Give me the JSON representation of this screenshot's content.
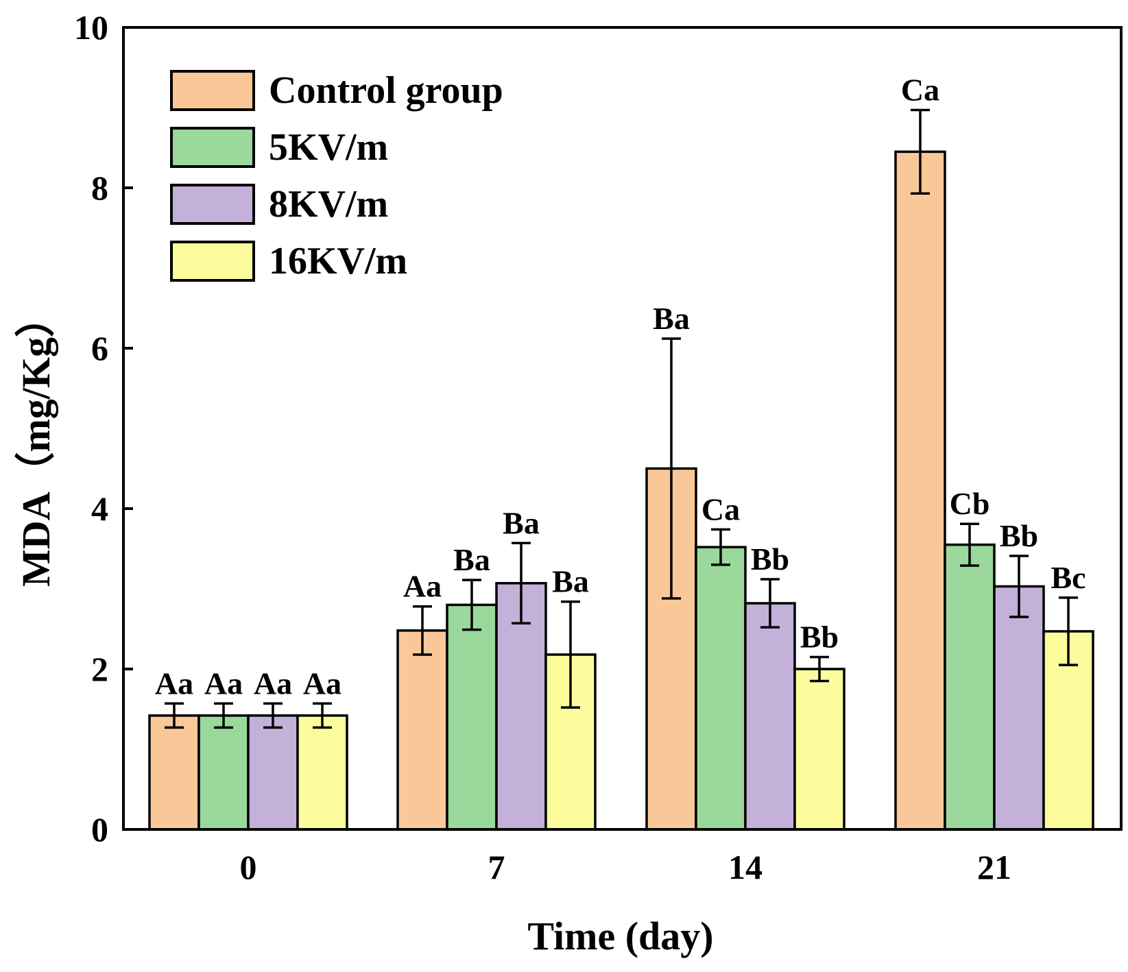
{
  "chart_data": {
    "type": "bar",
    "title": "",
    "xlabel": "Time (day)",
    "ylabel": "MDA（mg/Kg）",
    "categories": [
      "0",
      "7",
      "14",
      "21"
    ],
    "ylim": [
      0,
      10
    ],
    "yticks": [
      "0",
      "2",
      "4",
      "6",
      "8",
      "10"
    ],
    "grid": false,
    "legend_position": "top-left",
    "series": [
      {
        "name": "Control group",
        "color": "#FAC898",
        "values": [
          1.42,
          2.48,
          4.5,
          8.45
        ],
        "errors": [
          0.15,
          0.3,
          1.62,
          0.52
        ],
        "labels": [
          "Aa",
          "Aa",
          "Ba",
          "Ca"
        ]
      },
      {
        "name": "5KV/m",
        "color": "#9AD89B",
        "values": [
          1.42,
          2.8,
          3.52,
          3.55
        ],
        "errors": [
          0.15,
          0.31,
          0.22,
          0.26
        ],
        "labels": [
          "Aa",
          "Ba",
          "Ca",
          "Cb"
        ]
      },
      {
        "name": "8KV/m",
        "color": "#C3B1D9",
        "values": [
          1.42,
          3.07,
          2.82,
          3.03
        ],
        "errors": [
          0.15,
          0.5,
          0.3,
          0.38
        ],
        "labels": [
          "Aa",
          "Ba",
          "Bb",
          "Bb"
        ]
      },
      {
        "name": "16KV/m",
        "color": "#FDFC9C",
        "values": [
          1.42,
          2.18,
          2.0,
          2.47
        ],
        "errors": [
          0.15,
          0.66,
          0.15,
          0.42
        ],
        "labels": [
          "Aa",
          "Ba",
          "Bb",
          "Bc"
        ]
      }
    ]
  }
}
